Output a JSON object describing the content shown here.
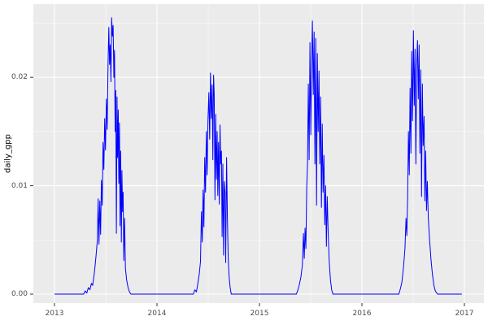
{
  "chart_data": {
    "type": "line",
    "title": "",
    "xlabel": "",
    "ylabel": "daily_gpp",
    "legend_position": "none",
    "theme": "ggplot2-grey",
    "grid": {
      "major": true,
      "minor": true
    },
    "xlim": [
      2012.79,
      2017.19
    ],
    "ylim": [
      -0.0008,
      0.0268
    ],
    "x_ticks": {
      "values": [
        2013,
        2014,
        2015,
        2016,
        2017
      ],
      "labels": [
        "2013",
        "2014",
        "2015",
        "2016",
        "2017"
      ]
    },
    "y_ticks": {
      "values": [
        0,
        0.01,
        0.02
      ],
      "labels": [
        "0.00",
        "0.01",
        "0.02"
      ]
    },
    "x_minor": [
      2013.5,
      2014.5,
      2015.5,
      2016.5
    ],
    "y_minor": [
      0.005,
      0.015,
      0.025
    ],
    "series": [
      {
        "name": "daily_gpp",
        "color": "#0000FF",
        "points": [
          [
            2013.0,
            0
          ],
          [
            2013.285,
            0
          ],
          [
            2013.3,
            0.0003
          ],
          [
            2013.315,
            0.0001
          ],
          [
            2013.33,
            0.0006
          ],
          [
            2013.345,
            0.0004
          ],
          [
            2013.36,
            0.001
          ],
          [
            2013.372,
            0.0008
          ],
          [
            2013.384,
            0.0016
          ],
          [
            2013.396,
            0.0026
          ],
          [
            2013.408,
            0.0038
          ],
          [
            2013.418,
            0.005
          ],
          [
            2013.426,
            0.0088
          ],
          [
            2013.434,
            0.0046
          ],
          [
            2013.442,
            0.0086
          ],
          [
            2013.45,
            0.0055
          ],
          [
            2013.458,
            0.0105
          ],
          [
            2013.466,
            0.0082
          ],
          [
            2013.474,
            0.014
          ],
          [
            2013.482,
            0.0115
          ],
          [
            2013.49,
            0.0162
          ],
          [
            2013.498,
            0.0133
          ],
          [
            2013.506,
            0.018
          ],
          [
            2013.514,
            0.0152
          ],
          [
            2013.522,
            0.021
          ],
          [
            2013.53,
            0.0246
          ],
          [
            2013.537,
            0.0212
          ],
          [
            2013.544,
            0.023
          ],
          [
            2013.551,
            0.0196
          ],
          [
            2013.558,
            0.0255
          ],
          [
            2013.565,
            0.0238
          ],
          [
            2013.572,
            0.0248
          ],
          [
            2013.579,
            0.02
          ],
          [
            2013.586,
            0.0225
          ],
          [
            2013.592,
            0.015
          ],
          [
            2013.598,
            0.0188
          ],
          [
            2013.604,
            0.0056
          ],
          [
            2013.61,
            0.0182
          ],
          [
            2013.616,
            0.0126
          ],
          [
            2013.622,
            0.017
          ],
          [
            2013.628,
            0.0102
          ],
          [
            2013.634,
            0.0158
          ],
          [
            2013.64,
            0.0063
          ],
          [
            2013.646,
            0.0132
          ],
          [
            2013.652,
            0.0048
          ],
          [
            2013.658,
            0.0114
          ],
          [
            2013.664,
            0.0076
          ],
          [
            2013.67,
            0.0094
          ],
          [
            2013.676,
            0.0031
          ],
          [
            2013.684,
            0.007
          ],
          [
            2013.692,
            0.0024
          ],
          [
            2013.704,
            0.0013
          ],
          [
            2013.718,
            0.0006
          ],
          [
            2013.732,
            0.0002
          ],
          [
            2013.745,
            0
          ],
          [
            2014.355,
            0
          ],
          [
            2014.37,
            0.0004
          ],
          [
            2014.385,
            0.0002
          ],
          [
            2014.398,
            0.0009
          ],
          [
            2014.412,
            0.0018
          ],
          [
            2014.425,
            0.003
          ],
          [
            2014.434,
            0.0076
          ],
          [
            2014.442,
            0.0048
          ],
          [
            2014.45,
            0.0096
          ],
          [
            2014.458,
            0.0062
          ],
          [
            2014.466,
            0.0126
          ],
          [
            2014.474,
            0.0094
          ],
          [
            2014.482,
            0.015
          ],
          [
            2014.49,
            0.011
          ],
          [
            2014.498,
            0.016
          ],
          [
            2014.506,
            0.0186
          ],
          [
            2014.514,
            0.0143
          ],
          [
            2014.522,
            0.0204
          ],
          [
            2014.53,
            0.0162
          ],
          [
            2014.538,
            0.0193
          ],
          [
            2014.545,
            0.0124
          ],
          [
            2014.552,
            0.0202
          ],
          [
            2014.559,
            0.0184
          ],
          [
            2014.566,
            0.0087
          ],
          [
            2014.573,
            0.0166
          ],
          [
            2014.58,
            0.0106
          ],
          [
            2014.587,
            0.015
          ],
          [
            2014.594,
            0.0091
          ],
          [
            2014.601,
            0.014
          ],
          [
            2014.608,
            0.0083
          ],
          [
            2014.615,
            0.0156
          ],
          [
            2014.622,
            0.012
          ],
          [
            2014.629,
            0.0132
          ],
          [
            2014.636,
            0.0053
          ],
          [
            2014.643,
            0.012
          ],
          [
            2014.65,
            0.0036
          ],
          [
            2014.657,
            0.0104
          ],
          [
            2014.664,
            0.0094
          ],
          [
            2014.671,
            0.0029
          ],
          [
            2014.679,
            0.0126
          ],
          [
            2014.687,
            0.007
          ],
          [
            2014.695,
            0.0033
          ],
          [
            2014.704,
            0.0016
          ],
          [
            2014.714,
            0.0006
          ],
          [
            2014.725,
            0
          ],
          [
            2015.36,
            0
          ],
          [
            2015.375,
            0.0004
          ],
          [
            2015.39,
            0.0009
          ],
          [
            2015.405,
            0.0016
          ],
          [
            2015.419,
            0.0027
          ],
          [
            2015.429,
            0.0056
          ],
          [
            2015.437,
            0.0033
          ],
          [
            2015.445,
            0.0061
          ],
          [
            2015.453,
            0.0042
          ],
          [
            2015.461,
            0.0098
          ],
          [
            2015.469,
            0.012
          ],
          [
            2015.477,
            0.0194
          ],
          [
            2015.485,
            0.0124
          ],
          [
            2015.493,
            0.0232
          ],
          [
            2015.501,
            0.0147
          ],
          [
            2015.509,
            0.021
          ],
          [
            2015.517,
            0.0252
          ],
          [
            2015.525,
            0.0184
          ],
          [
            2015.533,
            0.0242
          ],
          [
            2015.541,
            0.012
          ],
          [
            2015.549,
            0.0236
          ],
          [
            2015.557,
            0.0082
          ],
          [
            2015.565,
            0.0222
          ],
          [
            2015.573,
            0.015
          ],
          [
            2015.581,
            0.0206
          ],
          [
            2015.589,
            0.012
          ],
          [
            2015.597,
            0.0182
          ],
          [
            2015.605,
            0.008
          ],
          [
            2015.613,
            0.0157
          ],
          [
            2015.621,
            0.0094
          ],
          [
            2015.629,
            0.0128
          ],
          [
            2015.637,
            0.0064
          ],
          [
            2015.645,
            0.01
          ],
          [
            2015.653,
            0.0044
          ],
          [
            2015.661,
            0.009
          ],
          [
            2015.669,
            0.0062
          ],
          [
            2015.68,
            0.0031
          ],
          [
            2015.693,
            0.0013
          ],
          [
            2015.705,
            0.0004
          ],
          [
            2015.717,
            0
          ],
          [
            2016.36,
            0
          ],
          [
            2016.375,
            0.0005
          ],
          [
            2016.39,
            0.0011
          ],
          [
            2016.405,
            0.0024
          ],
          [
            2016.42,
            0.0042
          ],
          [
            2016.43,
            0.007
          ],
          [
            2016.438,
            0.0054
          ],
          [
            2016.446,
            0.009
          ],
          [
            2016.454,
            0.015
          ],
          [
            2016.462,
            0.011
          ],
          [
            2016.47,
            0.019
          ],
          [
            2016.478,
            0.013
          ],
          [
            2016.486,
            0.0224
          ],
          [
            2016.494,
            0.016
          ],
          [
            2016.502,
            0.0243
          ],
          [
            2016.51,
            0.0174
          ],
          [
            2016.518,
            0.0226
          ],
          [
            2016.526,
            0.012
          ],
          [
            2016.534,
            0.021
          ],
          [
            2016.542,
            0.0234
          ],
          [
            2016.55,
            0.018
          ],
          [
            2016.558,
            0.023
          ],
          [
            2016.566,
            0.013
          ],
          [
            2016.574,
            0.0207
          ],
          [
            2016.582,
            0.009
          ],
          [
            2016.59,
            0.0194
          ],
          [
            2016.598,
            0.0137
          ],
          [
            2016.606,
            0.0164
          ],
          [
            2016.614,
            0.0086
          ],
          [
            2016.622,
            0.0132
          ],
          [
            2016.63,
            0.0077
          ],
          [
            2016.638,
            0.0104
          ],
          [
            2016.648,
            0.007
          ],
          [
            2016.66,
            0.005
          ],
          [
            2016.674,
            0.0032
          ],
          [
            2016.688,
            0.0018
          ],
          [
            2016.702,
            0.0008
          ],
          [
            2016.716,
            0.0003
          ],
          [
            2016.73,
            0.0001
          ],
          [
            2016.74,
            0
          ],
          [
            2016.975,
            0
          ]
        ]
      }
    ]
  },
  "style": {
    "panel_bg": "#EBEBEB",
    "grid_color": "#FFFFFF",
    "outer_bg": "#FFFFFF",
    "tick_mark_color": "#333333",
    "tick_label_color": "#4D4D4D",
    "axis_title_color": "#000000",
    "line_color": "#0000FF"
  }
}
